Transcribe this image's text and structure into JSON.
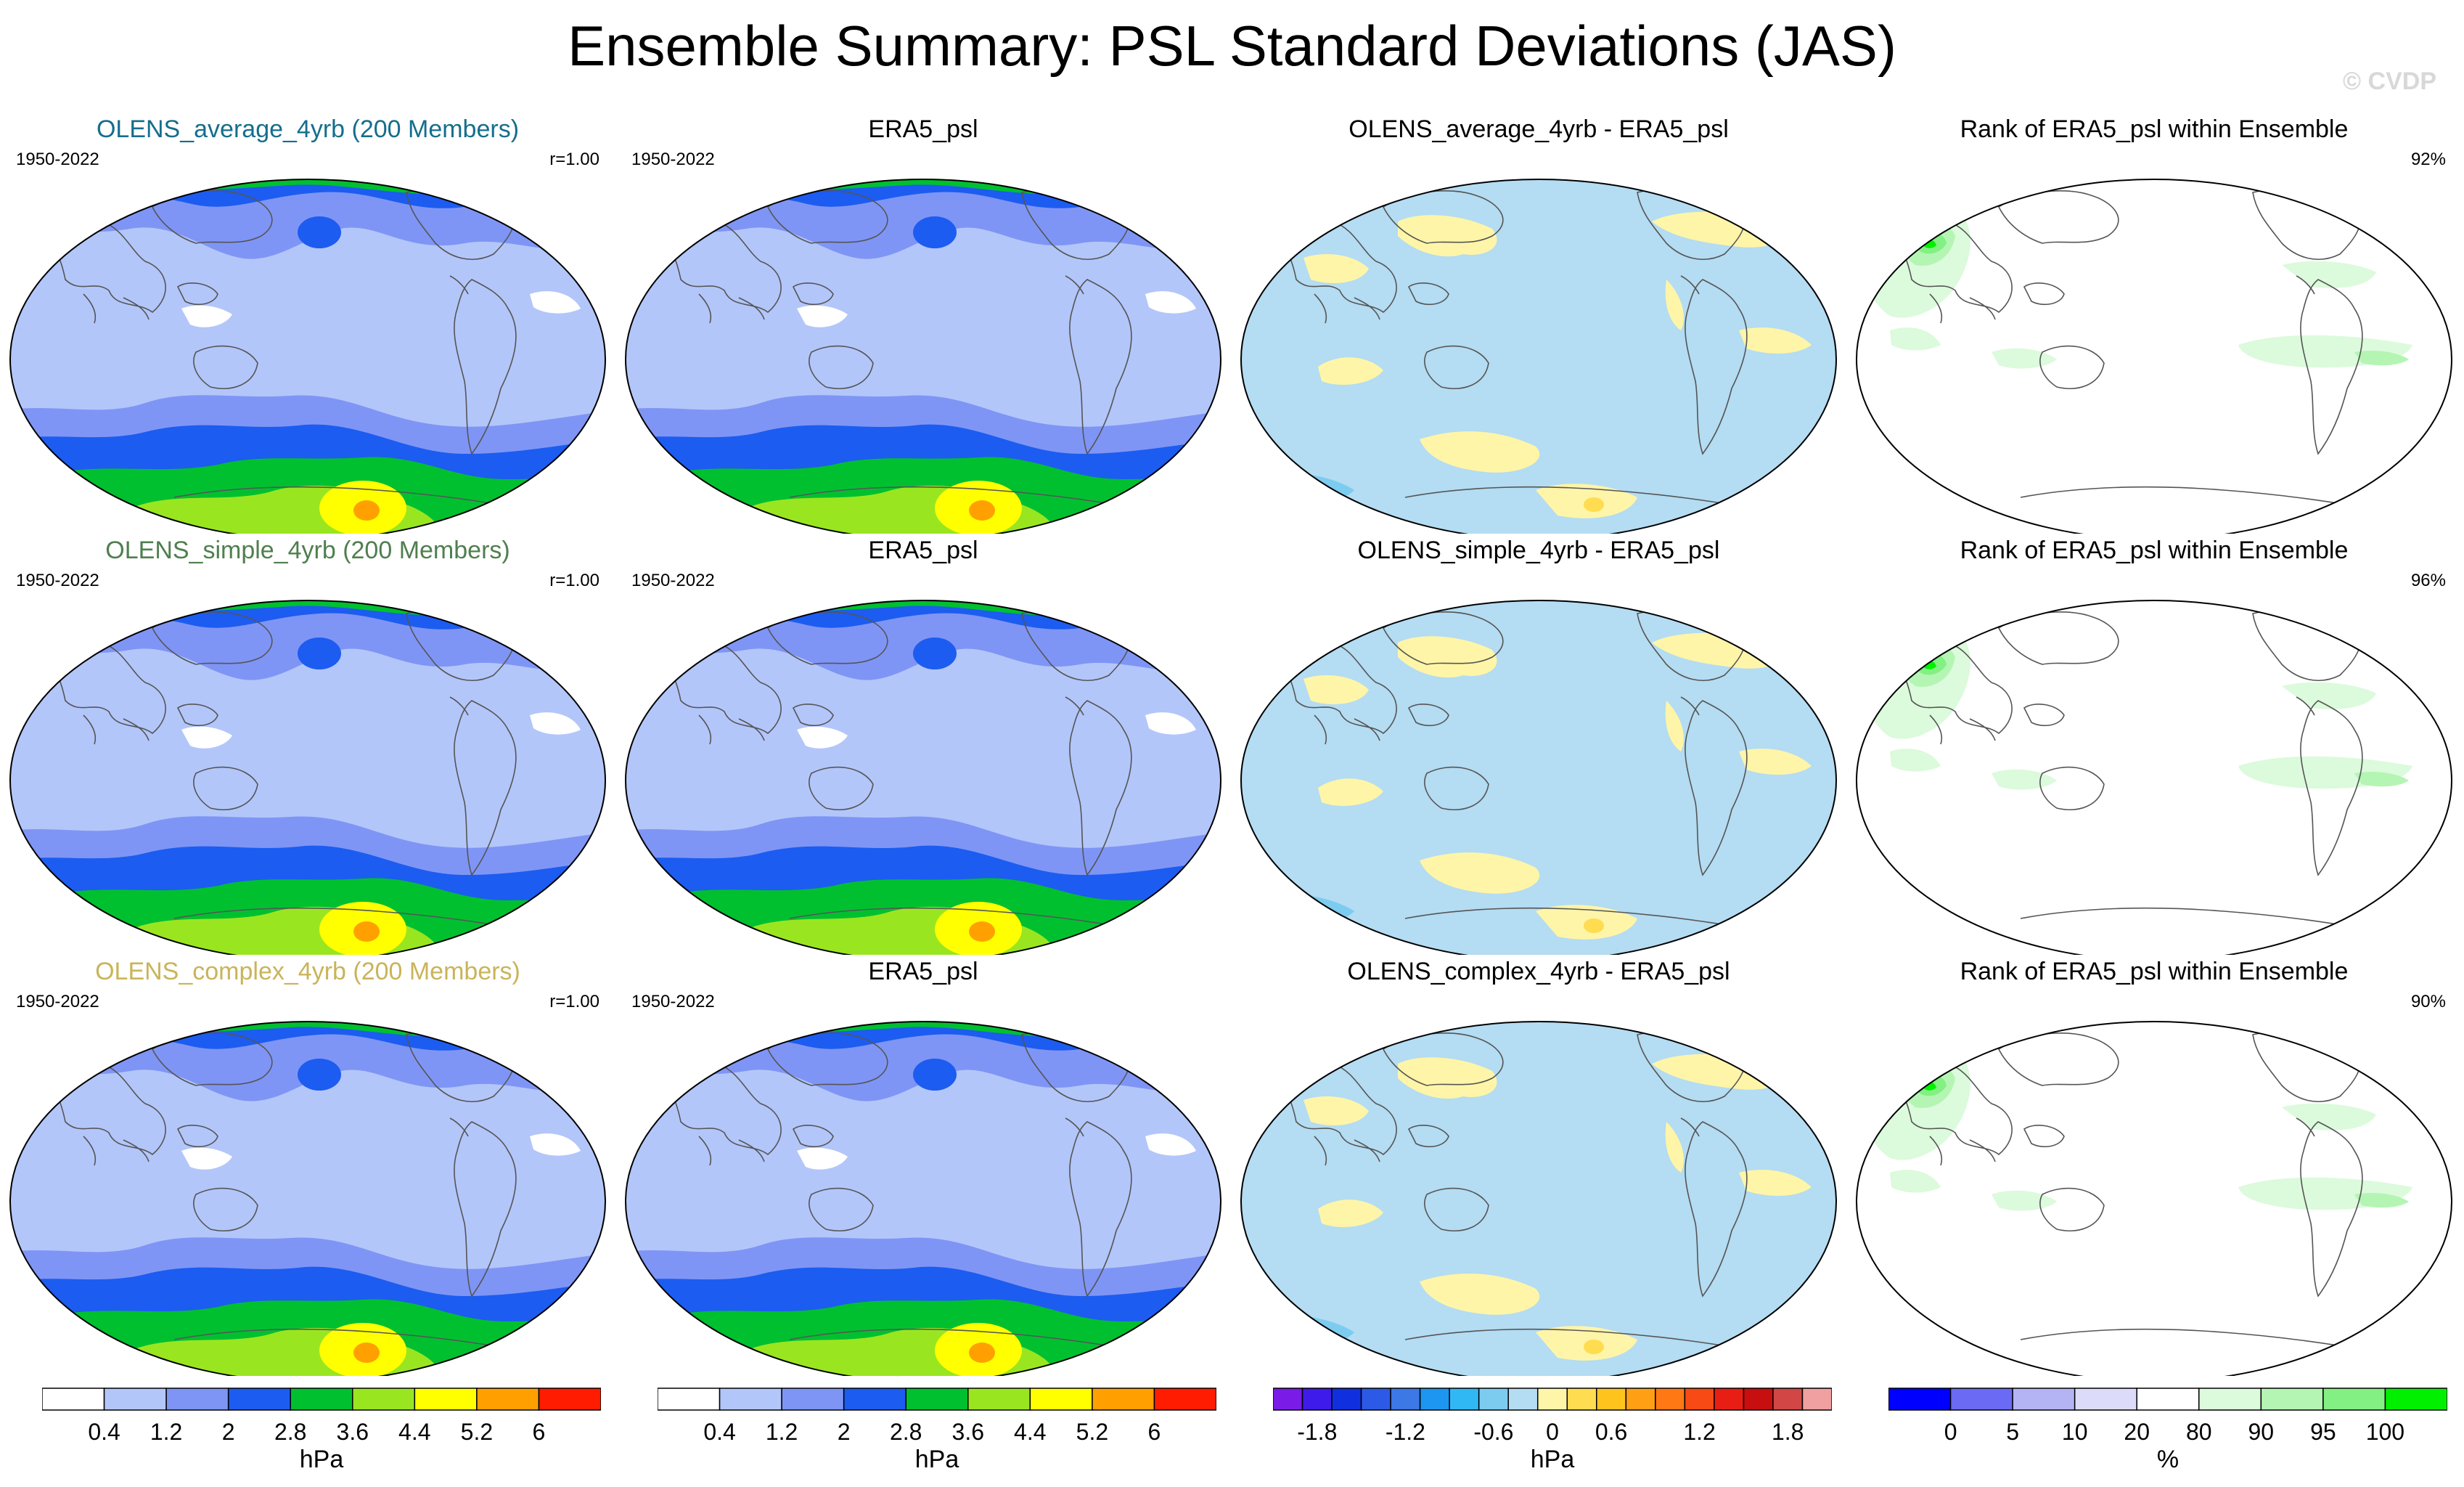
{
  "title": "Ensemble Summary: PSL Standard Deviations (JAS)",
  "watermark": "© CVDP",
  "rows": [
    {
      "model": {
        "title": "OLENS_average_4yrb (200 Members)",
        "title_color": "#156E8C",
        "period": "1950-2022",
        "corr": "r=1.00"
      },
      "obs": {
        "title": "ERA5_psl",
        "period": "1950-2022"
      },
      "diff": {
        "title": "OLENS_average_4yrb - ERA5_psl"
      },
      "rank": {
        "title": "Rank of ERA5_psl within Ensemble",
        "pct": "92%"
      }
    },
    {
      "model": {
        "title": "OLENS_simple_4yrb (200 Members)",
        "title_color": "#4F7F4F",
        "period": "1950-2022",
        "corr": "r=1.00"
      },
      "obs": {
        "title": "ERA5_psl",
        "period": "1950-2022"
      },
      "diff": {
        "title": "OLENS_simple_4yrb - ERA5_psl"
      },
      "rank": {
        "title": "Rank of ERA5_psl within Ensemble",
        "pct": "96%"
      }
    },
    {
      "model": {
        "title": "OLENS_complex_4yrb (200 Members)",
        "title_color": "#C9B45A",
        "period": "1950-2022",
        "corr": "r=1.00"
      },
      "obs": {
        "title": "ERA5_psl",
        "period": "1950-2022"
      },
      "diff": {
        "title": "OLENS_complex_4yrb - ERA5_psl"
      },
      "rank": {
        "title": "Rank of ERA5_psl within Ensemble",
        "pct": "90%"
      }
    }
  ],
  "colorbars": [
    {
      "unit": "hPa",
      "colors": [
        "#FFFFFF",
        "#B3C6FA",
        "#7F95F5",
        "#1C5CF0",
        "#00C030",
        "#99E620",
        "#FFFF00",
        "#FFA000",
        "#FF1C00"
      ],
      "labels": [
        "0.4",
        "1.2",
        "2",
        "2.8",
        "3.6",
        "4.4",
        "5.2",
        "6"
      ]
    },
    {
      "unit": "hPa",
      "colors": [
        "#FFFFFF",
        "#B3C6FA",
        "#7F95F5",
        "#1C5CF0",
        "#00C030",
        "#99E620",
        "#FFFF00",
        "#FFA000",
        "#FF1C00"
      ],
      "labels": [
        "0.4",
        "1.2",
        "2",
        "2.8",
        "3.6",
        "4.4",
        "5.2",
        "6"
      ]
    },
    {
      "unit": "hPa",
      "colors": [
        "#7B1BE8",
        "#3F1BEB",
        "#1030E0",
        "#2C5AE6",
        "#3C78E6",
        "#1C96F0",
        "#30B8F5",
        "#7CCCF0",
        "#B4DCF2",
        "#FFF5A8",
        "#FFDC50",
        "#FFC31E",
        "#FFA014",
        "#FF7814",
        "#F84A14",
        "#E81E14",
        "#C80F0F",
        "#D24646",
        "#F0A0A0"
      ],
      "labels": [
        "-1.8",
        "-1.2",
        "-0.6",
        "0",
        "0.6",
        "1.2",
        "1.8"
      ],
      "label_slots": [
        1.5,
        4.5,
        7.5,
        9.5,
        11.5,
        14.5,
        17.5
      ]
    },
    {
      "unit": "%",
      "colors": [
        "#0000FF",
        "#6A6AF5",
        "#B4B4F5",
        "#DCDCFA",
        "#FFFFFF",
        "#DCFADC",
        "#B4F5B4",
        "#82F082",
        "#00F000"
      ],
      "labels": [
        "0",
        "5",
        "10",
        "20",
        "80",
        "90",
        "95",
        "100"
      ]
    }
  ],
  "chart_data": [
    {
      "type": "heatmap",
      "title": "OLENS_average_4yrb (200 Members)",
      "subtitle_left": "1950-2022",
      "subtitle_right": "r=1.00",
      "variable": "PSL standard deviation",
      "units": "hPa",
      "levels": [
        0.4,
        1.2,
        2,
        2.8,
        3.6,
        4.4,
        5.2,
        6
      ],
      "projection": "Robinson (Pacific-centered)",
      "max_region": "Southern Ocean (~5.2-6 hPa)"
    },
    {
      "type": "heatmap",
      "title": "ERA5_psl",
      "subtitle_left": "1950-2022",
      "variable": "PSL standard deviation",
      "units": "hPa",
      "levels": [
        0.4,
        1.2,
        2,
        2.8,
        3.6,
        4.4,
        5.2,
        6
      ]
    },
    {
      "type": "heatmap",
      "title": "OLENS_average_4yrb - ERA5_psl",
      "units": "hPa",
      "levels": [
        -1.8,
        -1.2,
        -0.6,
        0,
        0.6,
        1.2,
        1.8
      ],
      "dominant_range": "-0.6 to 0.6"
    },
    {
      "type": "heatmap",
      "title": "Rank of ERA5_psl within Ensemble",
      "subtitle_right": "92%",
      "units": "%",
      "levels": [
        0,
        5,
        10,
        20,
        80,
        90,
        95,
        100
      ]
    },
    {
      "type": "heatmap",
      "title": "OLENS_simple_4yrb (200 Members)",
      "subtitle_left": "1950-2022",
      "subtitle_right": "r=1.00",
      "units": "hPa"
    },
    {
      "type": "heatmap",
      "title": "ERA5_psl",
      "subtitle_left": "1950-2022",
      "units": "hPa"
    },
    {
      "type": "heatmap",
      "title": "OLENS_simple_4yrb - ERA5_psl",
      "units": "hPa"
    },
    {
      "type": "heatmap",
      "title": "Rank of ERA5_psl within Ensemble",
      "subtitle_right": "96%",
      "units": "%"
    },
    {
      "type": "heatmap",
      "title": "OLENS_complex_4yrb (200 Members)",
      "subtitle_left": "1950-2022",
      "subtitle_right": "r=1.00",
      "units": "hPa"
    },
    {
      "type": "heatmap",
      "title": "ERA5_psl",
      "subtitle_left": "1950-2022",
      "units": "hPa"
    },
    {
      "type": "heatmap",
      "title": "OLENS_complex_4yrb - ERA5_psl",
      "units": "hPa"
    },
    {
      "type": "heatmap",
      "title": "Rank of ERA5_psl within Ensemble",
      "subtitle_right": "90%",
      "units": "%"
    }
  ]
}
